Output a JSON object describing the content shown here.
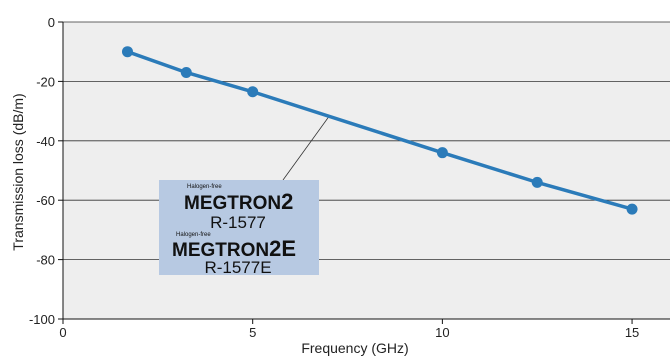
{
  "chart_data": {
    "type": "line",
    "xlabel": "Frequency (GHz)",
    "ylabel": "Transmission loss (dB/m)",
    "xlim": [
      0,
      16
    ],
    "ylim": [
      -100,
      0
    ],
    "xticks": [
      0,
      5,
      10,
      15
    ],
    "yticks": [
      0,
      -20,
      -40,
      -60,
      -80,
      -100
    ],
    "grid": "horizontal",
    "series": [
      {
        "name": "",
        "color": "#2b7bb9",
        "points": [
          {
            "x": 1.7,
            "y": -10
          },
          {
            "x": 3.25,
            "y": -17
          },
          {
            "x": 5,
            "y": -23.5
          },
          {
            "x": 10,
            "y": -44
          },
          {
            "x": 12.5,
            "y": -54
          },
          {
            "x": 15,
            "y": -63
          }
        ]
      }
    ],
    "annotation": {
      "pointer_to": {
        "x": 7,
        "y": -32
      },
      "lines": [
        {
          "small": "Halogen-free",
          "brand": "MEGTRON",
          "suffix": "2"
        },
        {
          "product": "R-1577"
        },
        {
          "small": "Halogen-free",
          "brand": "MEGTRON",
          "suffix": "2E"
        },
        {
          "product": "R-1577E"
        }
      ],
      "box_color": "#b7c9e2"
    }
  }
}
